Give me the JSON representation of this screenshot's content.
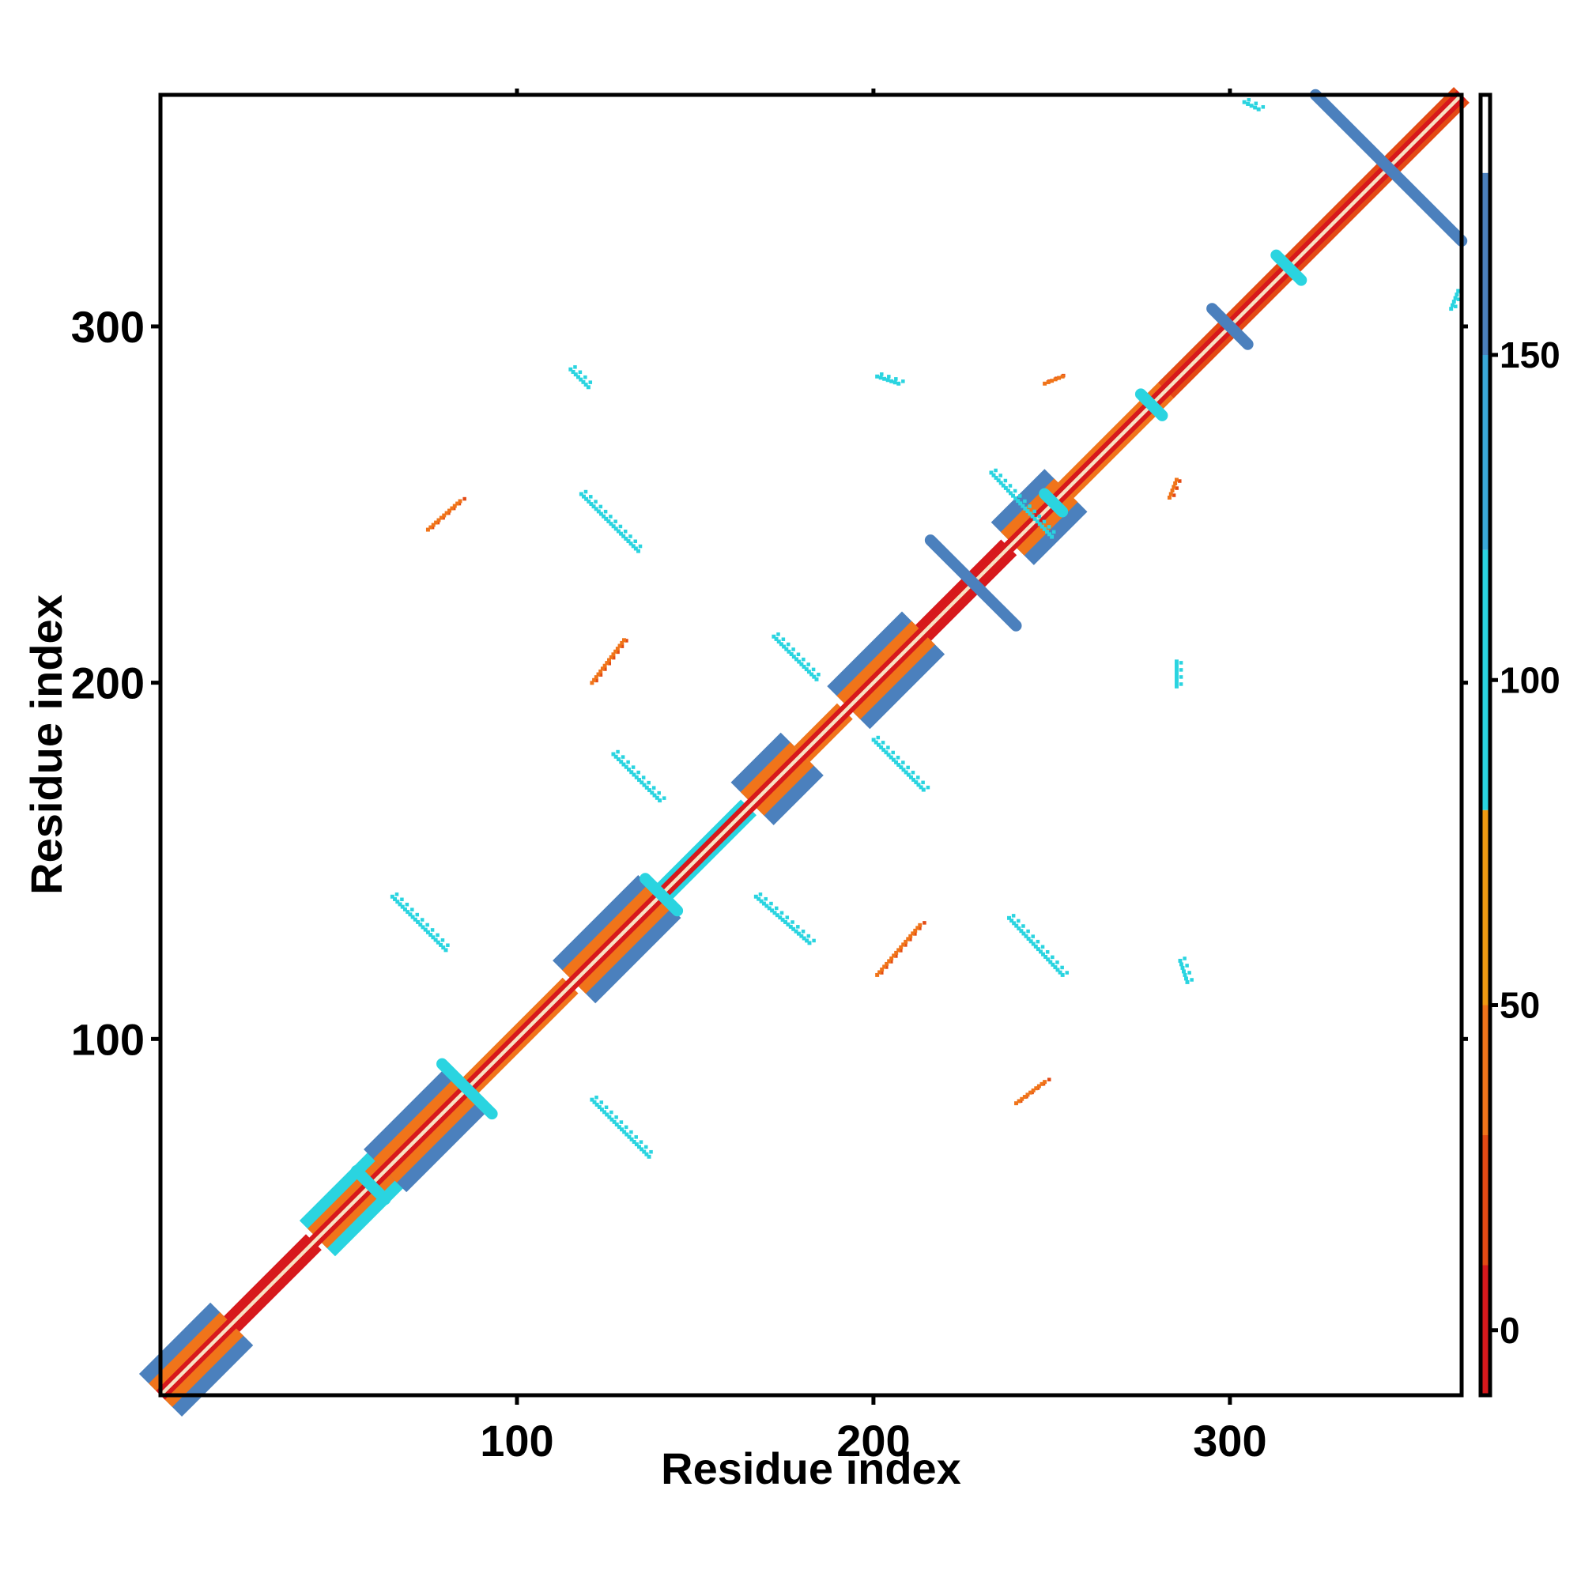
{
  "chart_data": {
    "type": "heatmap",
    "title": "",
    "xlabel": "Residue index",
    "ylabel": "Residue index",
    "xlim": [
      0,
      365
    ],
    "ylim": [
      0,
      365
    ],
    "x_ticks": [
      100,
      200,
      300
    ],
    "y_ticks": [
      100,
      200,
      300
    ],
    "grid": false,
    "colorbar": {
      "ticks": [
        0,
        50,
        100,
        150
      ],
      "range": [
        -10,
        190
      ],
      "bands": [
        {
          "from": -10,
          "to": 10,
          "color": "#d7191c"
        },
        {
          "from": 10,
          "to": 30,
          "color": "#e34a14"
        },
        {
          "from": 30,
          "to": 50,
          "color": "#f0741a"
        },
        {
          "from": 50,
          "to": 80,
          "color": "#ef9a12"
        },
        {
          "from": 80,
          "to": 120,
          "color": "#2ad4e0"
        },
        {
          "from": 120,
          "to": 150,
          "color": "#3aa8d8"
        },
        {
          "from": 150,
          "to": 178,
          "color": "#4b80bd"
        },
        {
          "from": 178,
          "to": 190,
          "color": "#ffffff"
        }
      ]
    },
    "diagonal_band": {
      "from": 0,
      "to": 365,
      "width": 2.5
    },
    "diagonal_segments": [
      {
        "from": 0,
        "to": 20,
        "width": 6,
        "value": 160
      },
      {
        "from": 44,
        "to": 66,
        "width": 5,
        "value": 100
      },
      {
        "from": 63,
        "to": 86,
        "width": 6,
        "value": 160
      },
      {
        "from": 116,
        "to": 140,
        "width": 6,
        "value": 160
      },
      {
        "from": 166,
        "to": 180,
        "width": 6,
        "value": 160
      },
      {
        "from": 193,
        "to": 214,
        "width": 6,
        "value": 160
      },
      {
        "from": 239,
        "to": 254,
        "width": 6,
        "value": 160
      }
    ],
    "helix_segments": [
      {
        "from": 20,
        "to": 43,
        "value": 5
      },
      {
        "from": 86,
        "to": 115,
        "value": 35
      },
      {
        "from": 140,
        "to": 165,
        "value": 100
      },
      {
        "from": 180,
        "to": 192,
        "value": 40
      },
      {
        "from": 214,
        "to": 238,
        "value": 5
      },
      {
        "from": 254,
        "to": 282,
        "value": 40
      },
      {
        "from": 282,
        "to": 365,
        "value": 20
      }
    ],
    "antiparallel_lines": [
      {
        "x1": 216,
        "y1": 240,
        "x2": 240,
        "y2": 216,
        "value": 160
      },
      {
        "x1": 324,
        "y1": 365,
        "x2": 365,
        "y2": 324,
        "value": 160
      },
      {
        "x1": 295,
        "y1": 305,
        "x2": 305,
        "y2": 295,
        "value": 160
      },
      {
        "x1": 313,
        "y1": 320,
        "x2": 320,
        "y2": 313,
        "value": 100
      },
      {
        "x1": 79,
        "y1": 93,
        "x2": 93,
        "y2": 79,
        "value": 100
      },
      {
        "x1": 136,
        "y1": 145,
        "x2": 145,
        "y2": 136,
        "value": 100
      },
      {
        "x1": 55,
        "y1": 63,
        "x2": 63,
        "y2": 55,
        "value": 100
      },
      {
        "x1": 275,
        "y1": 281,
        "x2": 281,
        "y2": 275,
        "value": 100
      },
      {
        "x1": 248,
        "y1": 253,
        "x2": 253,
        "y2": 248,
        "value": 100
      }
    ],
    "off_diagonal_clusters": [
      {
        "x1": 121,
        "y1": 83,
        "x2": 137,
        "y2": 67,
        "value": 100
      },
      {
        "x1": 65,
        "y1": 140,
        "x2": 80,
        "y2": 125,
        "value": 100
      },
      {
        "x1": 127,
        "y1": 180,
        "x2": 140,
        "y2": 167,
        "value": 100
      },
      {
        "x1": 118,
        "y1": 253,
        "x2": 134,
        "y2": 237,
        "value": 100
      },
      {
        "x1": 121,
        "y1": 200,
        "x2": 130,
        "y2": 212,
        "value": 45
      },
      {
        "x1": 75,
        "y1": 243,
        "x2": 84,
        "y2": 251,
        "value": 45
      },
      {
        "x1": 167,
        "y1": 140,
        "x2": 182,
        "y2": 127,
        "value": 100
      },
      {
        "x1": 172,
        "y1": 213,
        "x2": 184,
        "y2": 201,
        "value": 100
      },
      {
        "x1": 200,
        "y1": 184,
        "x2": 214,
        "y2": 170,
        "value": 100
      },
      {
        "x1": 201,
        "y1": 118,
        "x2": 213,
        "y2": 132,
        "value": 45
      },
      {
        "x1": 238,
        "y1": 134,
        "x2": 253,
        "y2": 118,
        "value": 100
      },
      {
        "x1": 240,
        "y1": 82,
        "x2": 248,
        "y2": 88,
        "value": 45
      },
      {
        "x1": 233,
        "y1": 259,
        "x2": 250,
        "y2": 241,
        "value": 100
      },
      {
        "x1": 283,
        "y1": 252,
        "x2": 285,
        "y2": 257,
        "value": 45
      },
      {
        "x1": 285,
        "y1": 199,
        "x2": 285,
        "y2": 206,
        "value": 100
      },
      {
        "x1": 286,
        "y1": 122,
        "x2": 288,
        "y2": 116,
        "value": 100
      },
      {
        "x1": 115,
        "y1": 288,
        "x2": 120,
        "y2": 283,
        "value": 100
      },
      {
        "x1": 201,
        "y1": 286,
        "x2": 207,
        "y2": 284,
        "value": 100
      },
      {
        "x1": 248,
        "y1": 284,
        "x2": 253,
        "y2": 286,
        "value": 45
      },
      {
        "x1": 304,
        "y1": 363,
        "x2": 308,
        "y2": 361,
        "value": 100
      },
      {
        "x1": 362,
        "y1": 305,
        "x2": 364,
        "y2": 310,
        "value": 100
      }
    ]
  }
}
